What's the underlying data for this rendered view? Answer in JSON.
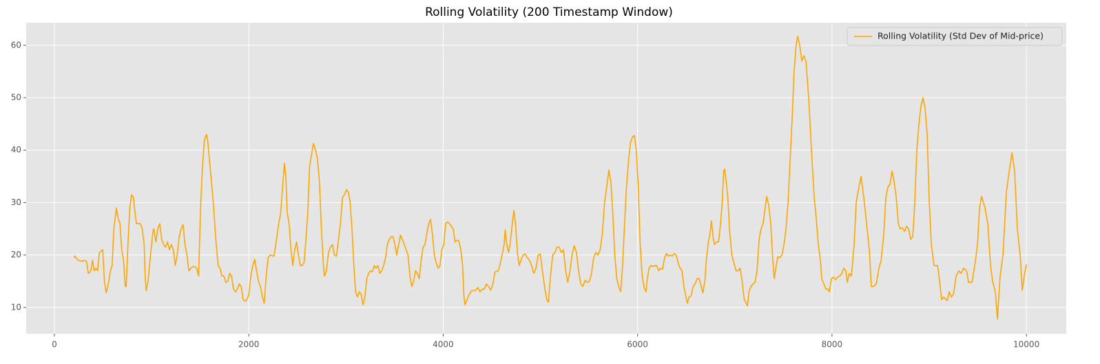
{
  "chart_data": {
    "type": "line",
    "title": "Rolling Volatility (200 Timestamp Window)",
    "x": [
      200,
      209,
      244,
      288,
      305,
      331,
      349,
      375,
      393,
      410,
      428,
      445,
      463,
      498,
      515,
      533,
      550,
      577,
      594,
      612,
      638,
      656,
      675,
      693,
      711,
      730,
      739,
      757,
      776,
      794,
      814,
      824,
      844,
      864,
      884,
      904,
      924,
      934,
      944,
      964,
      984,
      1014,
      1024,
      1044,
      1064,
      1084,
      1104,
      1124,
      1144,
      1164,
      1184,
      1204,
      1224,
      1244,
      1264,
      1284,
      1304,
      1324,
      1344,
      1364,
      1384,
      1404,
      1424,
      1444,
      1464,
      1484,
      1504,
      1524,
      1544,
      1566,
      1576,
      1606,
      1635,
      1665,
      1685,
      1704,
      1724,
      1744,
      1764,
      1784,
      1803,
      1823,
      1843,
      1863,
      1882,
      1902,
      1922,
      1942,
      1962,
      1981,
      2001,
      2021,
      2041,
      2061,
      2080,
      2100,
      2120,
      2140,
      2159,
      2179,
      2199,
      2219,
      2259,
      2278,
      2308,
      2328,
      2348,
      2367,
      2381,
      2396,
      2415,
      2434,
      2453,
      2473,
      2492,
      2511,
      2530,
      2549,
      2569,
      2588,
      2607,
      2626,
      2645,
      2665,
      2686,
      2706,
      2727,
      2747,
      2768,
      2778,
      2799,
      2820,
      2840,
      2861,
      2881,
      2902,
      2923,
      2943,
      2964,
      2984,
      3005,
      3024,
      3043,
      3062,
      3081,
      3099,
      3118,
      3137,
      3156,
      3175,
      3194,
      3214,
      3233,
      3252,
      3272,
      3291,
      3310,
      3329,
      3349,
      3368,
      3387,
      3407,
      3426,
      3445,
      3465,
      3484,
      3503,
      3522,
      3542,
      3561,
      3580,
      3600,
      3619,
      3638,
      3658,
      3677,
      3696,
      3716,
      3735,
      3754,
      3773,
      3793,
      3812,
      3831,
      3851,
      3870,
      3889,
      3909,
      3928,
      3948,
      3967,
      3986,
      4006,
      4025,
      4045,
      4064,
      4083,
      4103,
      4122,
      4142,
      4161,
      4181,
      4200,
      4214,
      4224,
      4246,
      4268,
      4290,
      4312,
      4334,
      4357,
      4379,
      4401,
      4423,
      4445,
      4467,
      4489,
      4511,
      4533,
      4567,
      4589,
      4611,
      4627,
      4638,
      4655,
      4672,
      4688,
      4705,
      4727,
      4744,
      4766,
      4783,
      4799,
      4821,
      4844,
      4866,
      4888,
      4910,
      4932,
      4955,
      4977,
      4999,
      5021,
      5043,
      5066,
      5082,
      5104,
      5127,
      5149,
      5171,
      5193,
      5215,
      5238,
      5260,
      5282,
      5304,
      5326,
      5349,
      5371,
      5393,
      5415,
      5437,
      5460,
      5482,
      5504,
      5526,
      5548,
      5571,
      5593,
      5615,
      5637,
      5660,
      5682,
      5705,
      5725,
      5745,
      5765,
      5786,
      5806,
      5826,
      5846,
      5866,
      5886,
      5907,
      5927,
      5947,
      5967,
      5987,
      6007,
      6027,
      6047,
      6067,
      6087,
      6097,
      6117,
      6137,
      6157,
      6177,
      6197,
      6217,
      6237,
      6257,
      6277,
      6297,
      6317,
      6337,
      6357,
      6377,
      6397,
      6417,
      6437,
      6457,
      6477,
      6497,
      6513,
      6529,
      6550,
      6571,
      6592,
      6613,
      6634,
      6655,
      6671,
      6692,
      6707,
      6728,
      6744,
      6760,
      6776,
      6791,
      6812,
      6833,
      6854,
      6870,
      6886,
      6896,
      6912,
      6928,
      6949,
      6970,
      6991,
      7013,
      7034,
      7055,
      7076,
      7097,
      7113,
      7130,
      7146,
      7166,
      7187,
      7208,
      7229,
      7250,
      7270,
      7291,
      7312,
      7328,
      7349,
      7370,
      7391,
      7406,
      7422,
      7443,
      7464,
      7485,
      7506,
      7527,
      7548,
      7569,
      7590,
      7610,
      7631,
      7647,
      7668,
      7689,
      7710,
      7732,
      7760,
      7789,
      7817,
      7838,
      7859,
      7881,
      7895,
      7916,
      7937,
      7958,
      7973,
      7994,
      8016,
      8037,
      8058,
      8080,
      8101,
      8122,
      8143,
      8157,
      8178,
      8200,
      8228,
      8249,
      8277,
      8299,
      8327,
      8356,
      8384,
      8405,
      8427,
      8455,
      8483,
      8505,
      8533,
      8554,
      8576,
      8597,
      8618,
      8639,
      8661,
      8682,
      8703,
      8724,
      8746,
      8767,
      8788,
      8809,
      8831,
      8852,
      8873,
      8894,
      8916,
      8937,
      8958,
      8979,
      9001,
      9022,
      9050,
      9086,
      9107,
      9128,
      9150,
      9185,
      9206,
      9227,
      9249,
      9277,
      9305,
      9327,
      9355,
      9384,
      9405,
      9440,
      9469,
      9497,
      9518,
      9539,
      9574,
      9603,
      9631,
      9652,
      9681,
      9702,
      9716,
      9730,
      9759,
      9794,
      9816,
      9851,
      9879,
      9907,
      9936,
      9957,
      9978,
      10000
    ],
    "series": [
      {
        "name": "Rolling Volatility (Std Dev of Mid-price)",
        "color": "#ffa500",
        "values": [
          19.5,
          19.8,
          19,
          18.8,
          19,
          18.8,
          16.5,
          17,
          19,
          17,
          17.5,
          17,
          20.5,
          21,
          15,
          12.8,
          14,
          17,
          18,
          25,
          29,
          27,
          26,
          21,
          19,
          14,
          14,
          22,
          29,
          31.5,
          31,
          29,
          26,
          26,
          26,
          25,
          22,
          16,
          13.2,
          15,
          19,
          24.5,
          25,
          22.5,
          25,
          26,
          23,
          22,
          21.5,
          22.5,
          21,
          22,
          21,
          18,
          20,
          23.5,
          25,
          25.8,
          22,
          20,
          17,
          17.5,
          17.8,
          17.8,
          17.5,
          16,
          29,
          37,
          42,
          43,
          42,
          36,
          30,
          22,
          18,
          17.5,
          16,
          16,
          14.8,
          15,
          16.5,
          16,
          13.5,
          13,
          13.5,
          14.5,
          14,
          11.5,
          11.2,
          11.5,
          12.5,
          16,
          18,
          19.2,
          17,
          15,
          14,
          12,
          10.8,
          16,
          19.5,
          20,
          19.8,
          22,
          26,
          28,
          33,
          37.5,
          35,
          28,
          26,
          21,
          18,
          21,
          22.5,
          20,
          18,
          18,
          18.5,
          23,
          28,
          37,
          39,
          41.3,
          40,
          38.5,
          34,
          25,
          18,
          16,
          17,
          20.5,
          21.5,
          22,
          20,
          19.8,
          23,
          26,
          31,
          31.5,
          32.5,
          32,
          30,
          25,
          18,
          13,
          12,
          13,
          12.5,
          10.5,
          12,
          15.5,
          16.5,
          17,
          16.8,
          18,
          17.5,
          18,
          16.5,
          17,
          18,
          19.5,
          22,
          23,
          23.5,
          23.5,
          22,
          20,
          22,
          23.8,
          23,
          22,
          21,
          20,
          16,
          14,
          15,
          17,
          16.5,
          15.5,
          19,
          21.5,
          22,
          24,
          26,
          26.8,
          24,
          20,
          18.5,
          17.5,
          18,
          21,
          22,
          26,
          26.3,
          26,
          25.5,
          25,
          22.5,
          22.8,
          22.8,
          21,
          18,
          12,
          10.5,
          11.5,
          12.5,
          13.2,
          13.2,
          13.3,
          13.8,
          13,
          13.5,
          13.5,
          14.5,
          14,
          13.3,
          14.5,
          16.8,
          17,
          18.5,
          20.5,
          22,
          24.8,
          22,
          20.5,
          22,
          25,
          28.5,
          26,
          20,
          18,
          19,
          20,
          20.2,
          19.5,
          19,
          18,
          16.5,
          17.5,
          20,
          20.2,
          17,
          14,
          11.5,
          11,
          16,
          20,
          20.5,
          21.5,
          21.5,
          20.5,
          21,
          17,
          14.8,
          17,
          20,
          21.8,
          20.5,
          17,
          14.5,
          14,
          15.2,
          14.8,
          15,
          16.5,
          19.5,
          20.5,
          20,
          21,
          24,
          30,
          33,
          36.2,
          34,
          28,
          20,
          15.5,
          14,
          13,
          18,
          26,
          33,
          38,
          41.5,
          42.5,
          42.8,
          40,
          33,
          22,
          16,
          13.8,
          13,
          15,
          17.5,
          18,
          17.8,
          18,
          18,
          17,
          17.5,
          17.3,
          19.5,
          20.3,
          19.8,
          20,
          19.8,
          20.3,
          20,
          18.5,
          17.5,
          17,
          14,
          12,
          10.8,
          12,
          12.2,
          14,
          14.5,
          15.5,
          15.5,
          14,
          12.8,
          15,
          19,
          22.5,
          24,
          26.5,
          23.5,
          22,
          22.5,
          22.5,
          26,
          30,
          36,
          36.4,
          34,
          31,
          24,
          20,
          18.5,
          17,
          17,
          17.5,
          15,
          11.5,
          11,
          10.3,
          13,
          14,
          14.5,
          14.8,
          17,
          23,
          25,
          26,
          29,
          31.2,
          29.5,
          26,
          19,
          15.5,
          17.5,
          19.7,
          19.5,
          20,
          22,
          25,
          30,
          38,
          46,
          55,
          60,
          61.7,
          60,
          57,
          58,
          57,
          50,
          40,
          31,
          27,
          22,
          19,
          15.5,
          14.5,
          13.5,
          13.5,
          13,
          15.5,
          15.8,
          15.3,
          15.8,
          16,
          16.5,
          17.5,
          17,
          14.8,
          16.5,
          16,
          22,
          30,
          33,
          35,
          31,
          26,
          21,
          14,
          14,
          14.5,
          17.5,
          19,
          24,
          31,
          33,
          33.5,
          36,
          34,
          31,
          26,
          25,
          25.2,
          24.5,
          25.5,
          25,
          23,
          23.5,
          30,
          40,
          45,
          48.5,
          50,
          48,
          43,
          30,
          22,
          18,
          18,
          15,
          11.5,
          12,
          11.3,
          13,
          12,
          12.5,
          16,
          17,
          16.5,
          17.5,
          17,
          14.8,
          14.8,
          18,
          22,
          29,
          31.2,
          29,
          26,
          18,
          15,
          13,
          7.8,
          12,
          16,
          20,
          32,
          35,
          39.5,
          36,
          25,
          20,
          13.3,
          16,
          18.2
        ]
      }
    ],
    "xlim": [
      -290,
      10410
    ],
    "ylim": [
      5,
      64.3
    ],
    "xticks": [
      0,
      2000,
      4000,
      6000,
      8000,
      10000
    ],
    "yticks": [
      10,
      20,
      30,
      40,
      50,
      60
    ],
    "grid": true,
    "legend": "upper right"
  }
}
